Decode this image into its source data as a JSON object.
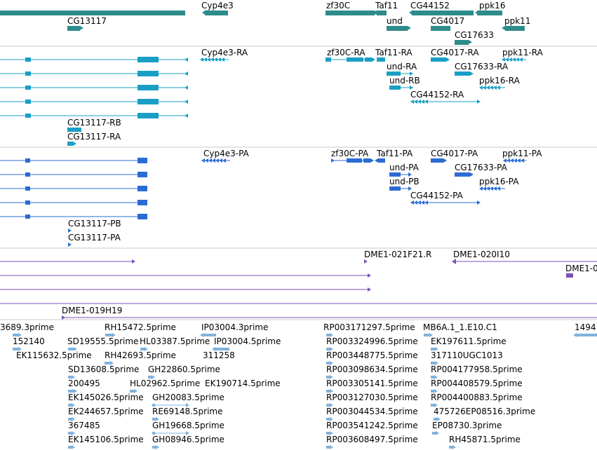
{
  "colors": {
    "gene": "#2e8b8b",
    "transcript": "#1a9fc4",
    "protein": "#2b6bd4",
    "clone": "#7a52b8",
    "est": "#7fb2dd",
    "divider": "#c8c8c8"
  },
  "tracks": {
    "genes": [
      {
        "label": "Cyp4e3"
      },
      {
        "label": "zf30C"
      },
      {
        "label": "Taf11"
      },
      {
        "label": "CG44152"
      },
      {
        "label": "ppk16"
      },
      {
        "label": "CG13117"
      },
      {
        "label": "und"
      },
      {
        "label": "CG4017"
      },
      {
        "label": "ppk11"
      },
      {
        "label": "CG17633"
      }
    ],
    "transcripts": [
      {
        "label": "Cyp4e3-RA"
      },
      {
        "label": "zf30C-RA"
      },
      {
        "label": "Taf11-RA"
      },
      {
        "label": "CG4017-RA"
      },
      {
        "label": "ppk11-RA"
      },
      {
        "label": "und-RA"
      },
      {
        "label": "CG17633-RA"
      },
      {
        "label": "und-RB"
      },
      {
        "label": "ppk16-RA"
      },
      {
        "label": "CG44152-RA"
      },
      {
        "label": "CG13117-RB"
      },
      {
        "label": "CG13117-RA"
      }
    ],
    "proteins": [
      {
        "label": "Cyp4e3-PA"
      },
      {
        "label": "zf30C-PA"
      },
      {
        "label": "Taf11-PA"
      },
      {
        "label": "CG4017-PA"
      },
      {
        "label": "ppk11-PA"
      },
      {
        "label": "und-PA"
      },
      {
        "label": "CG17633-PA"
      },
      {
        "label": "und-PB"
      },
      {
        "label": "ppk16-PA"
      },
      {
        "label": "CG44152-PA"
      },
      {
        "label": "CG13117-PB"
      },
      {
        "label": "CG13117-PA"
      }
    ],
    "clones": [
      {
        "label": "DME1-021F21.R"
      },
      {
        "label": "DME1-020I10"
      },
      {
        "label": "DME1-0"
      },
      {
        "label": "DME1-019H19"
      }
    ],
    "ests": [
      {
        "label": "3689.3prime"
      },
      {
        "label": "RH15472.5prime"
      },
      {
        "label": "IP03004.3prime"
      },
      {
        "label": "RP003171297.5prime"
      },
      {
        "label": "MB6A.1_1.E10.C1"
      },
      {
        "label": "1494"
      },
      {
        "label": "152140"
      },
      {
        "label": "SD19555.5prime"
      },
      {
        "label": "HL03387.5prime"
      },
      {
        "label": "IP03004.5prime"
      },
      {
        "label": "RP003324996.5prime"
      },
      {
        "label": "EK197611.5prime"
      },
      {
        "label": "EK115632.5prime"
      },
      {
        "label": "RH42693.5prime"
      },
      {
        "label": "311258"
      },
      {
        "label": "RP003448775.5prime"
      },
      {
        "label": "317110UGC1013"
      },
      {
        "label": "SD13608.5prime"
      },
      {
        "label": "GH22860.5prime"
      },
      {
        "label": "RP003098634.5prime"
      },
      {
        "label": "RP004177958.5prime"
      },
      {
        "label": "200495"
      },
      {
        "label": "HL02962.5prime"
      },
      {
        "label": "EK190714.5prime"
      },
      {
        "label": "RP003305141.5prime"
      },
      {
        "label": "RP004408579.5prime"
      },
      {
        "label": "EK145026.5prime"
      },
      {
        "label": "GH20083.5prime"
      },
      {
        "label": "RP003127030.5prime"
      },
      {
        "label": "RP004400883.5prime"
      },
      {
        "label": "EK244657.5prime"
      },
      {
        "label": "RE69148.5prime"
      },
      {
        "label": "RP003044534.5prime"
      },
      {
        "label": "475726EP08516.3prime"
      },
      {
        "label": "367485"
      },
      {
        "label": "GH19668.5prime"
      },
      {
        "label": "RP003541242.5prime"
      },
      {
        "label": "EP08730.3prime"
      },
      {
        "label": "EK145106.5prime"
      },
      {
        "label": "GH08946.5prime"
      },
      {
        "label": "RP003608497.5prime"
      },
      {
        "label": "RH45871.5prime"
      }
    ]
  }
}
